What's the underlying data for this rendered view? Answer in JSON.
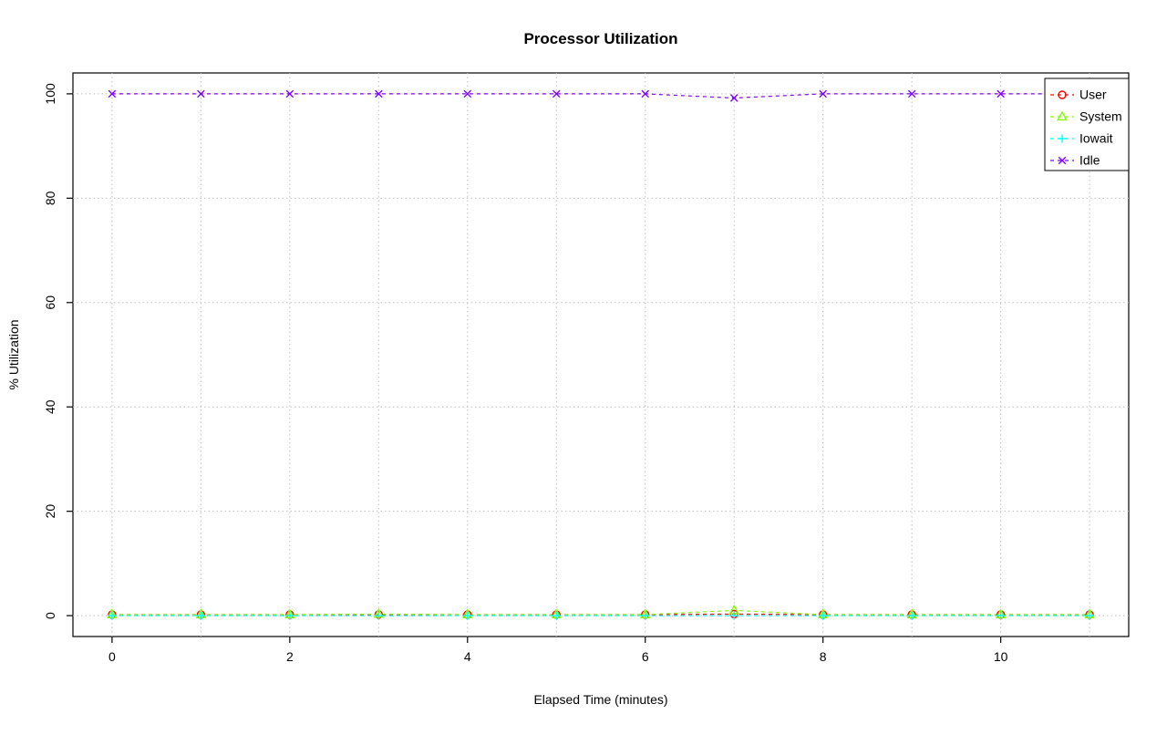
{
  "chart_data": {
    "type": "line",
    "title": "Processor Utilization",
    "xlabel": "Elapsed Time (minutes)",
    "ylabel": "% Utilization",
    "x": [
      0,
      1,
      2,
      3,
      4,
      5,
      6,
      7,
      8,
      9,
      10,
      11
    ],
    "xlim": [
      -0.44,
      11.44
    ],
    "ylim": [
      -4,
      104
    ],
    "xticks": [
      0,
      2,
      4,
      6,
      8,
      10
    ],
    "yticks": [
      0,
      20,
      40,
      60,
      80,
      100
    ],
    "grid": {
      "x": [
        0,
        1,
        2,
        3,
        4,
        5,
        6,
        7,
        8,
        9,
        10,
        11
      ],
      "y": [
        0,
        20,
        40,
        60,
        80,
        100
      ],
      "style": "dotted",
      "color": "#bfbfbf"
    },
    "legend_position": "top-right",
    "series": [
      {
        "name": "User",
        "color": "#FF0000",
        "marker": "circle",
        "values": [
          0.2,
          0.2,
          0.2,
          0.2,
          0.2,
          0.2,
          0.2,
          0.3,
          0.2,
          0.2,
          0.2,
          0.2
        ]
      },
      {
        "name": "System",
        "color": "#80FF00",
        "marker": "triangle",
        "values": [
          0.2,
          0.2,
          0.2,
          0.3,
          0.2,
          0.2,
          0.2,
          1.0,
          0.2,
          0.2,
          0.2,
          0.2
        ]
      },
      {
        "name": "Iowait",
        "color": "#00FFFF",
        "marker": "plus",
        "values": [
          0,
          0,
          0,
          0,
          0,
          0,
          0,
          0,
          0,
          0,
          0,
          0
        ]
      },
      {
        "name": "Idle",
        "color": "#8000FF",
        "marker": "x",
        "values": [
          100,
          100,
          100,
          100,
          100,
          100,
          100,
          99.2,
          100,
          100,
          100,
          100
        ]
      }
    ]
  }
}
